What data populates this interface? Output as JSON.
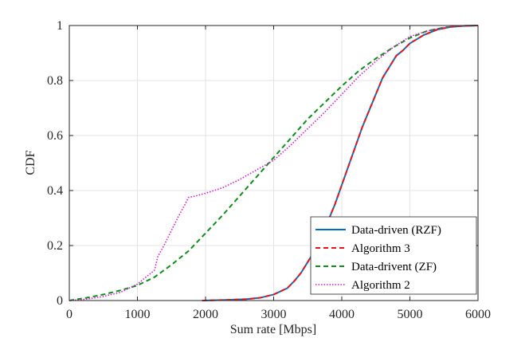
{
  "chart_data": {
    "type": "line",
    "title": "",
    "xlabel": "Sum rate [Mbps]",
    "ylabel": "CDF",
    "xlim": [
      0,
      6000
    ],
    "ylim": [
      0,
      1
    ],
    "xticks": [
      0,
      1000,
      2000,
      3000,
      4000,
      5000,
      6000
    ],
    "yticks": [
      0,
      0.2,
      0.4,
      0.6,
      0.8,
      1
    ],
    "xtick_labels": [
      "0",
      "1000",
      "2000",
      "3000",
      "4000",
      "5000",
      "6000"
    ],
    "ytick_labels": [
      "0",
      "0.2",
      "0.4",
      "0.6",
      "0.8",
      "1"
    ],
    "grid": true,
    "legend_position": "bottom-right",
    "series": [
      {
        "name": "Data-driven (RZF)",
        "color": "#0072BD",
        "style": "solid",
        "x": [
          1950,
          2300,
          2600,
          2800,
          3000,
          3200,
          3300,
          3400,
          3500,
          3600,
          3700,
          3800,
          3900,
          4000,
          4100,
          4200,
          4300,
          4400,
          4500,
          4600,
          4700,
          4800,
          4900,
          5000,
          5200,
          5400,
          5600,
          5800,
          6000
        ],
        "y": [
          0,
          0.002,
          0.005,
          0.01,
          0.022,
          0.045,
          0.07,
          0.1,
          0.14,
          0.18,
          0.23,
          0.29,
          0.35,
          0.42,
          0.49,
          0.56,
          0.63,
          0.69,
          0.75,
          0.81,
          0.85,
          0.89,
          0.91,
          0.935,
          0.965,
          0.985,
          0.995,
          0.999,
          1
        ]
      },
      {
        "name": "Algorithm 3",
        "color": "#E8131B",
        "style": "dashed",
        "x": [
          1950,
          2300,
          2600,
          2800,
          3000,
          3200,
          3300,
          3400,
          3500,
          3600,
          3700,
          3800,
          3900,
          4000,
          4100,
          4200,
          4300,
          4400,
          4500,
          4600,
          4700,
          4800,
          4900,
          5000,
          5200,
          5400,
          5600,
          5800,
          6000
        ],
        "y": [
          0,
          0.002,
          0.005,
          0.01,
          0.022,
          0.045,
          0.07,
          0.1,
          0.14,
          0.18,
          0.23,
          0.29,
          0.35,
          0.42,
          0.49,
          0.56,
          0.63,
          0.69,
          0.75,
          0.81,
          0.85,
          0.89,
          0.91,
          0.935,
          0.965,
          0.985,
          0.995,
          0.999,
          1
        ]
      },
      {
        "name": "Data-drivent (ZF)",
        "color": "#118B1E",
        "style": "dashed",
        "x": [
          0,
          250,
          500,
          750,
          1000,
          1250,
          1500,
          1750,
          2000,
          2250,
          2500,
          2750,
          3000,
          3250,
          3500,
          3750,
          4000,
          4250,
          4500,
          4750,
          5000,
          5250,
          5500,
          5750,
          6000
        ],
        "y": [
          0,
          0.01,
          0.022,
          0.037,
          0.055,
          0.085,
          0.13,
          0.18,
          0.245,
          0.31,
          0.38,
          0.45,
          0.52,
          0.59,
          0.66,
          0.72,
          0.78,
          0.835,
          0.88,
          0.92,
          0.955,
          0.98,
          0.993,
          0.998,
          1
        ]
      },
      {
        "name": "Algorithm 2",
        "color": "#D01FD0",
        "style": "dotted",
        "x": [
          0,
          250,
          500,
          750,
          1000,
          1150,
          1250,
          1300,
          1400,
          1500,
          1600,
          1700,
          1750,
          1850,
          2000,
          2250,
          2500,
          2750,
          3000,
          3250,
          3500,
          3750,
          4000,
          4250,
          4500,
          4750,
          5000,
          5250,
          5500,
          5750,
          6000
        ],
        "y": [
          0,
          0.005,
          0.015,
          0.03,
          0.06,
          0.09,
          0.11,
          0.16,
          0.205,
          0.255,
          0.305,
          0.35,
          0.375,
          0.38,
          0.39,
          0.41,
          0.44,
          0.475,
          0.51,
          0.565,
          0.625,
          0.685,
          0.75,
          0.815,
          0.87,
          0.92,
          0.96,
          0.98,
          0.993,
          0.998,
          1
        ]
      }
    ]
  }
}
